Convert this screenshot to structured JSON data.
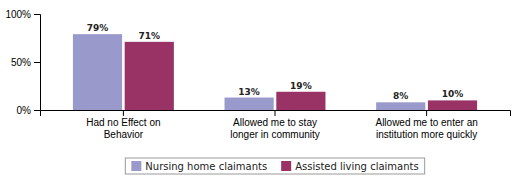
{
  "chart_data": {
    "type": "bar",
    "categories": [
      "Had no Effect on\nBehavior",
      "Allowed me to stay\nlonger in community",
      "Allowed me to enter an\ninstitution more quickly"
    ],
    "series": [
      {
        "name": "Nursing home claimants",
        "color": "#9999CC",
        "values": [
          79,
          13,
          8
        ],
        "value_labels": [
          "79%",
          "13%",
          "8%"
        ]
      },
      {
        "name": "Assisted living claimants",
        "color": "#993366",
        "values": [
          71,
          19,
          10
        ],
        "value_labels": [
          "71%",
          "19%",
          "10%"
        ]
      }
    ],
    "ylim": [
      0,
      100
    ],
    "yticks": [
      {
        "value": 0,
        "label": "0%"
      },
      {
        "value": 50,
        "label": "50%"
      },
      {
        "value": 100,
        "label": "100%"
      }
    ],
    "data_labels": true,
    "grid": false,
    "legend": "bottom"
  }
}
